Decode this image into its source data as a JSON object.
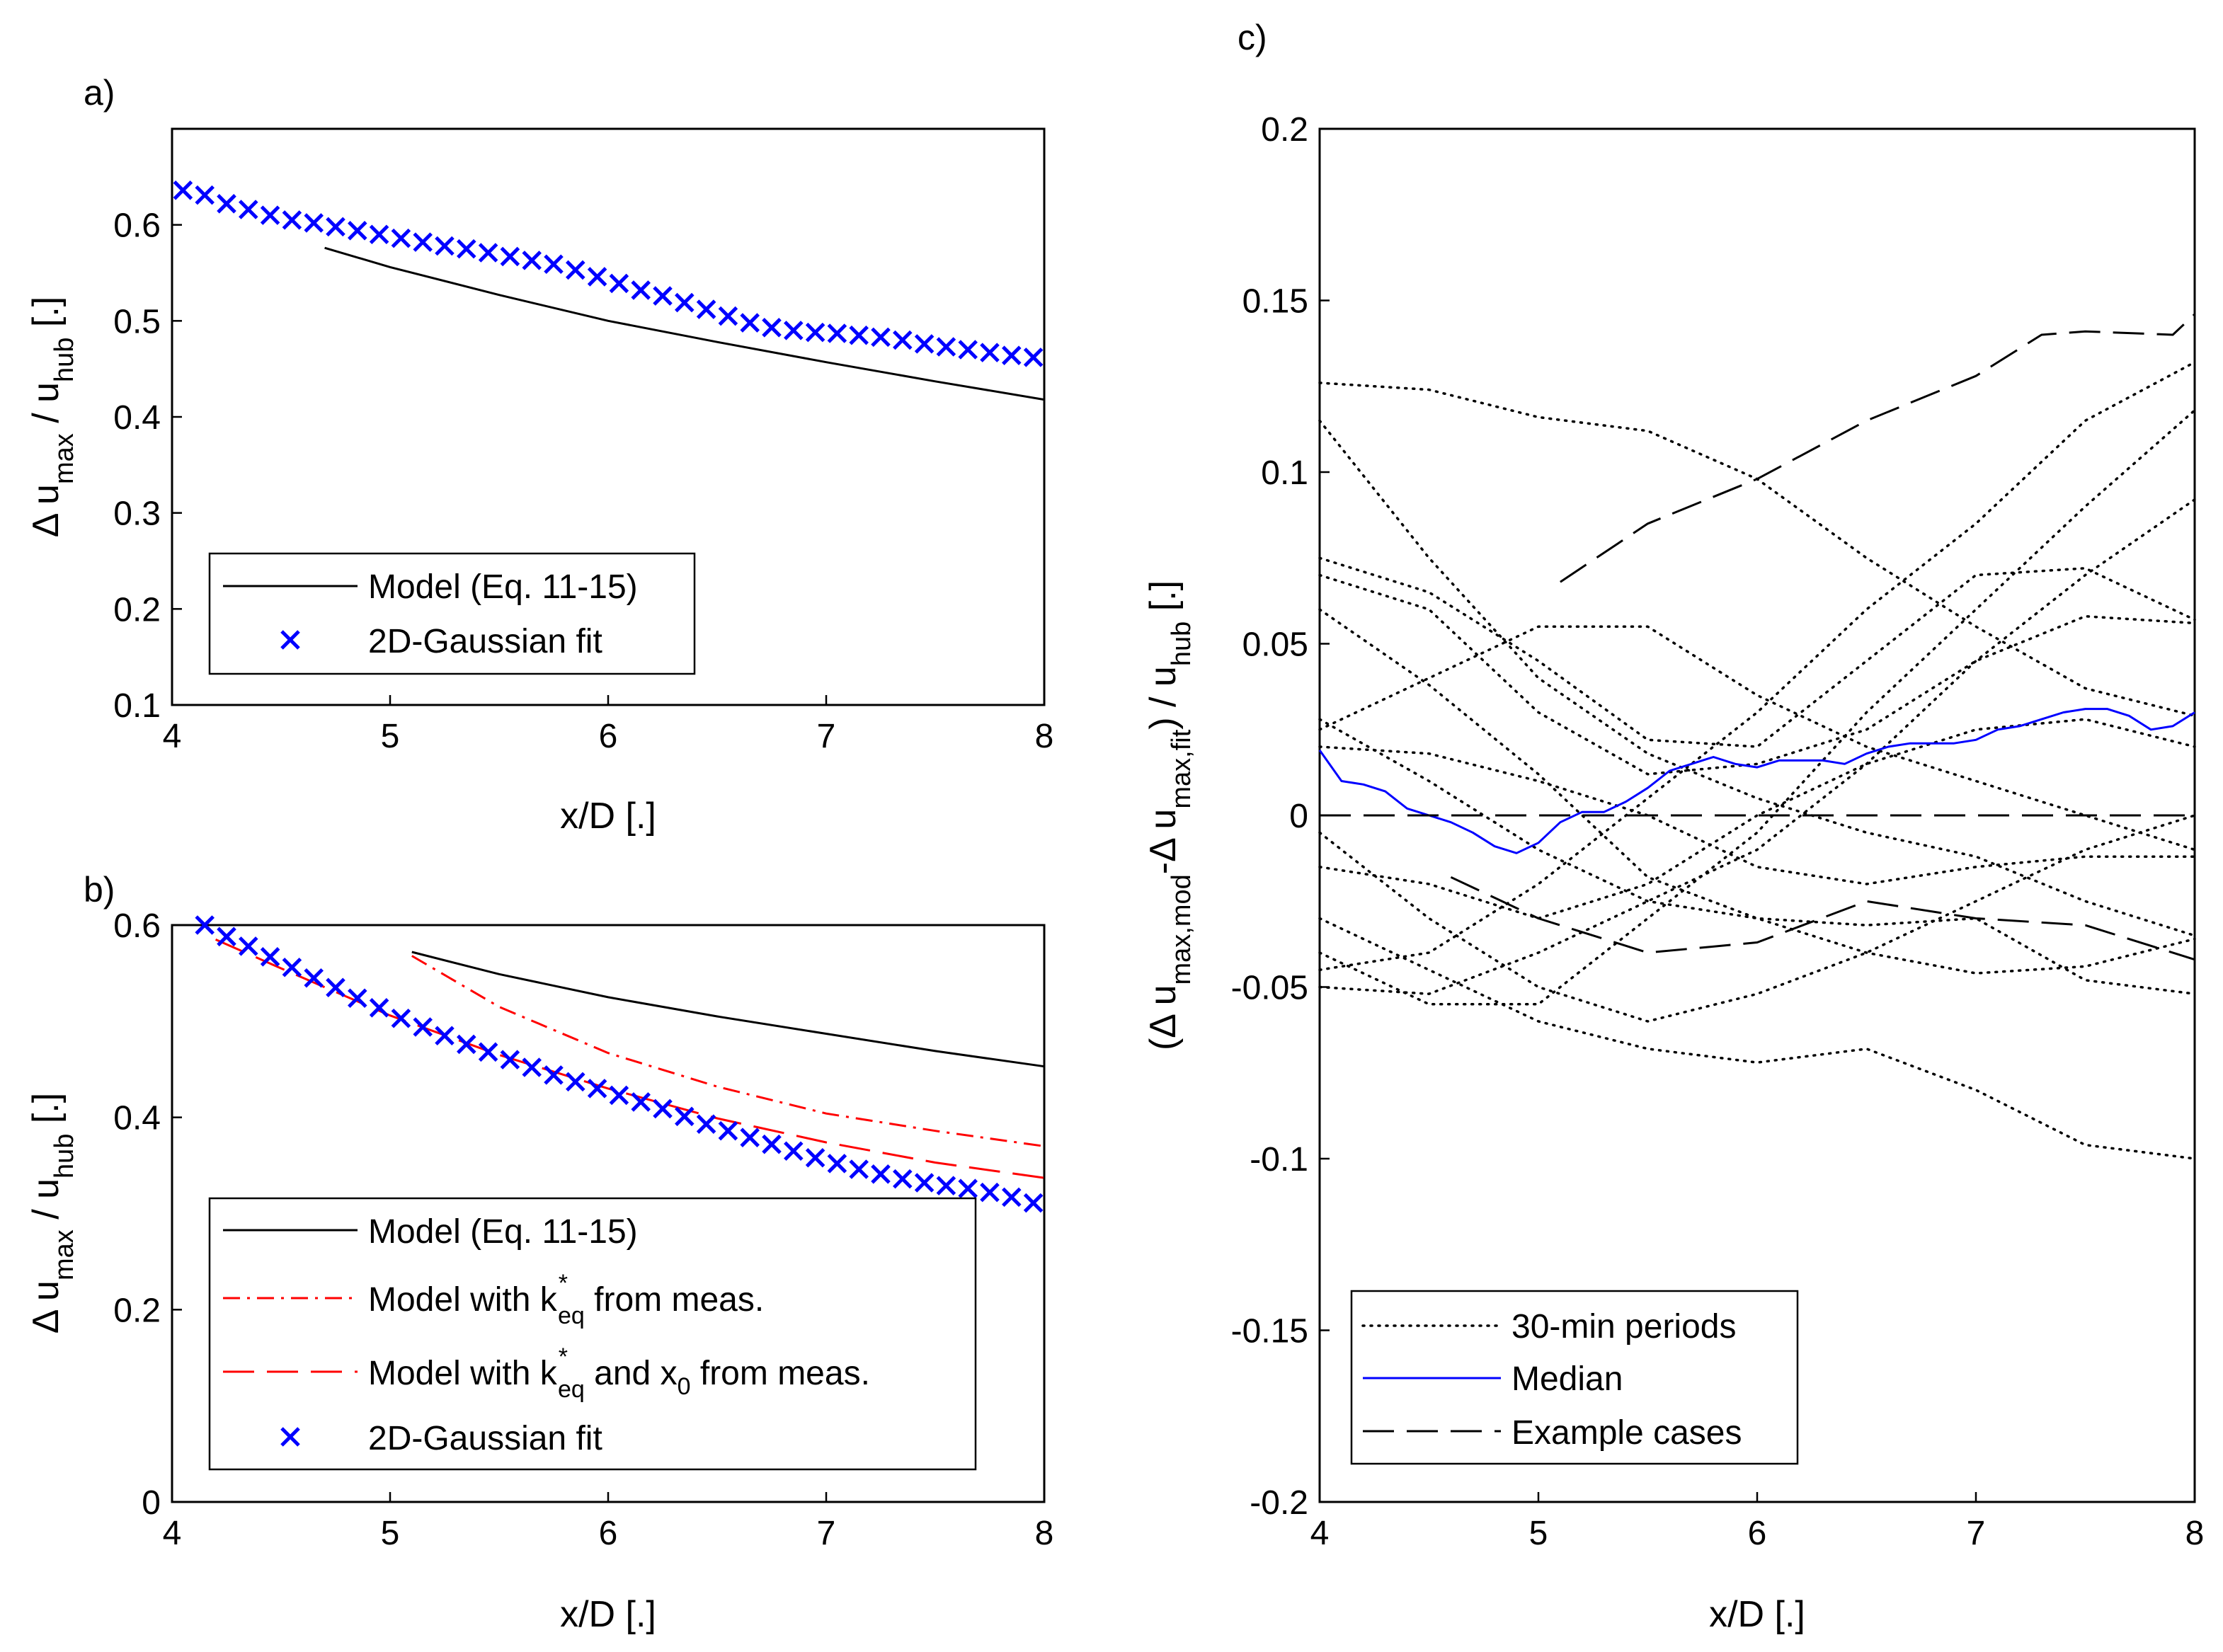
{
  "chart_data": [
    {
      "id": "a",
      "type": "line",
      "panel_label": "a)",
      "xlabel": "x/D [.]",
      "ylabel": "Δ u_max / u_hub [.]",
      "xlim": [
        4,
        8
      ],
      "ylim": [
        0.1,
        0.7
      ],
      "xticks": [
        "4",
        "5",
        "6",
        "7",
        "8"
      ],
      "yticks": [
        "0.1",
        "0.2",
        "0.3",
        "0.4",
        "0.5",
        "0.6"
      ],
      "legend_position": "bottom-left",
      "series": [
        {
          "name": "Model (Eq. 11-15)",
          "style": "solid",
          "color": "#000000",
          "x": [
            4.7,
            5.0,
            5.5,
            6.0,
            6.5,
            7.0,
            7.5,
            8.0
          ],
          "y": [
            0.576,
            0.556,
            0.527,
            0.5,
            0.478,
            0.457,
            0.437,
            0.418
          ]
        },
        {
          "name": "2D-Gaussian fit",
          "style": "x-marker",
          "color": "#0000ff",
          "x": [
            4.05,
            4.15,
            4.25,
            4.35,
            4.45,
            4.55,
            4.65,
            4.75,
            4.85,
            4.95,
            5.05,
            5.15,
            5.25,
            5.35,
            5.45,
            5.55,
            5.65,
            5.75,
            5.85,
            5.95,
            6.05,
            6.15,
            6.25,
            6.35,
            6.45,
            6.55,
            6.65,
            6.75,
            6.85,
            6.95,
            7.05,
            7.15,
            7.25,
            7.35,
            7.45,
            7.55,
            7.65,
            7.75,
            7.85,
            7.95
          ],
          "y": [
            0.636,
            0.631,
            0.622,
            0.616,
            0.61,
            0.605,
            0.602,
            0.598,
            0.594,
            0.59,
            0.586,
            0.582,
            0.578,
            0.575,
            0.571,
            0.567,
            0.563,
            0.559,
            0.553,
            0.546,
            0.539,
            0.532,
            0.526,
            0.519,
            0.512,
            0.505,
            0.498,
            0.493,
            0.49,
            0.488,
            0.487,
            0.485,
            0.483,
            0.48,
            0.476,
            0.473,
            0.47,
            0.467,
            0.464,
            0.462
          ]
        }
      ]
    },
    {
      "id": "b",
      "type": "line",
      "panel_label": "b)",
      "xlabel": "x/D [.]",
      "ylabel": "Δ u_max / u_hub [.]",
      "xlim": [
        4,
        8
      ],
      "ylim": [
        0,
        0.6
      ],
      "xticks": [
        "4",
        "5",
        "6",
        "7",
        "8"
      ],
      "yticks": [
        "0",
        "0.2",
        "0.4",
        "0.6"
      ],
      "legend_position": "bottom-left",
      "series": [
        {
          "name": "Model (Eq. 11-15)",
          "style": "solid",
          "color": "#000000",
          "x": [
            5.1,
            5.5,
            6.0,
            6.5,
            7.0,
            7.5,
            8.0
          ],
          "y": [
            0.572,
            0.549,
            0.525,
            0.505,
            0.487,
            0.469,
            0.453
          ]
        },
        {
          "name": "Model with k*_eq from meas.",
          "style": "dashdot",
          "color": "#ff0000",
          "x": [
            5.1,
            5.5,
            6.0,
            6.5,
            7.0,
            7.5,
            8.0
          ],
          "y": [
            0.568,
            0.515,
            0.467,
            0.432,
            0.404,
            0.386,
            0.37
          ]
        },
        {
          "name": "Model with k*_eq and x_0 from meas.",
          "style": "dashed",
          "color": "#ff0000",
          "x": [
            4.2,
            4.5,
            5.0,
            5.5,
            6.0,
            6.5,
            7.0,
            7.5,
            8.0
          ],
          "y": [
            0.585,
            0.555,
            0.506,
            0.465,
            0.43,
            0.399,
            0.374,
            0.353,
            0.337
          ]
        },
        {
          "name": "2D-Gaussian fit",
          "style": "x-marker",
          "color": "#0000ff",
          "x": [
            4.15,
            4.25,
            4.35,
            4.45,
            4.55,
            4.65,
            4.75,
            4.85,
            4.95,
            5.05,
            5.15,
            5.25,
            5.35,
            5.45,
            5.55,
            5.65,
            5.75,
            5.85,
            5.95,
            6.05,
            6.15,
            6.25,
            6.35,
            6.45,
            6.55,
            6.65,
            6.75,
            6.85,
            6.95,
            7.05,
            7.15,
            7.25,
            7.35,
            7.45,
            7.55,
            7.65,
            7.75,
            7.85,
            7.95
          ],
          "y": [
            0.6,
            0.588,
            0.578,
            0.567,
            0.556,
            0.545,
            0.535,
            0.524,
            0.514,
            0.503,
            0.494,
            0.485,
            0.476,
            0.468,
            0.46,
            0.452,
            0.444,
            0.437,
            0.43,
            0.423,
            0.416,
            0.409,
            0.401,
            0.393,
            0.386,
            0.379,
            0.372,
            0.365,
            0.358,
            0.352,
            0.346,
            0.341,
            0.336,
            0.332,
            0.329,
            0.326,
            0.322,
            0.317,
            0.311
          ]
        }
      ]
    },
    {
      "id": "c",
      "type": "line",
      "panel_label": "c)",
      "xlabel": "x/D [.]",
      "ylabel": "(Δ u_max,mod - Δ u_max,fit) / u_hub [.]",
      "xlim": [
        4,
        8
      ],
      "ylim": [
        -0.2,
        0.2
      ],
      "xticks": [
        "4",
        "5",
        "6",
        "7",
        "8"
      ],
      "yticks": [
        "-0.2",
        "-0.15",
        "-0.1",
        "-0.05",
        "0",
        "0.05",
        "0.1",
        "0.15",
        "0.2"
      ],
      "legend_position": "bottom-left",
      "legend": [
        "30-min periods",
        "Median",
        "Example cases"
      ],
      "series": [
        {
          "name": "30-min periods",
          "style": "dotted",
          "color": "#000000",
          "x": [
            4,
            4.5,
            5,
            5.5,
            6,
            6.5,
            7,
            7.5,
            8
          ],
          "y": [
            0.126,
            0.124,
            0.116,
            0.112,
            0.098,
            0.075,
            0.055,
            0.037,
            0.029
          ]
        },
        {
          "name": "30-min periods",
          "style": "dotted",
          "color": "#000000",
          "x": [
            4,
            4.5,
            5,
            5.5,
            6,
            6.5,
            7,
            7.5,
            8
          ],
          "y": [
            0.115,
            0.075,
            0.04,
            0.018,
            0.005,
            -0.005,
            -0.012,
            -0.025,
            -0.035
          ]
        },
        {
          "name": "30-min periods",
          "style": "dotted",
          "color": "#000000",
          "x": [
            4,
            4.5,
            5,
            5.5,
            6,
            6.5,
            7,
            7.5,
            8
          ],
          "y": [
            0.075,
            0.065,
            0.045,
            0.022,
            0.02,
            0.045,
            0.07,
            0.072,
            0.057
          ]
        },
        {
          "name": "30-min periods",
          "style": "dotted",
          "color": "#000000",
          "x": [
            4,
            4.5,
            5,
            5.5,
            6,
            6.5,
            7,
            7.5,
            8
          ],
          "y": [
            0.07,
            0.06,
            0.03,
            0.012,
            0.015,
            0.025,
            0.045,
            0.058,
            0.056
          ]
        },
        {
          "name": "30-min periods",
          "style": "dotted",
          "color": "#000000",
          "x": [
            4,
            4.5,
            5,
            5.5,
            6,
            6.5,
            7,
            7.5,
            8
          ],
          "y": [
            0.06,
            0.038,
            0.012,
            -0.018,
            -0.03,
            -0.032,
            -0.03,
            -0.048,
            -0.052
          ]
        },
        {
          "name": "30-min periods",
          "style": "dotted",
          "color": "#000000",
          "x": [
            4,
            4.5,
            5,
            5.5,
            6,
            6.5,
            7,
            7.5,
            8
          ],
          "y": [
            0.028,
            0.01,
            -0.01,
            -0.025,
            -0.03,
            -0.04,
            -0.046,
            -0.044,
            -0.036
          ]
        },
        {
          "name": "30-min periods",
          "style": "dotted",
          "color": "#000000",
          "x": [
            4,
            4.5,
            5,
            5.5,
            6,
            6.5,
            7,
            7.5,
            8
          ],
          "y": [
            0.025,
            0.04,
            0.055,
            0.055,
            0.035,
            0.02,
            0.01,
            0.0,
            -0.01
          ]
        },
        {
          "name": "30-min periods",
          "style": "dotted",
          "color": "#000000",
          "x": [
            4,
            4.5,
            5,
            5.5,
            6,
            6.5,
            7,
            7.5,
            8
          ],
          "y": [
            0.02,
            0.018,
            0.01,
            0.0,
            -0.015,
            -0.02,
            -0.015,
            -0.012,
            -0.012
          ]
        },
        {
          "name": "30-min periods",
          "style": "dotted",
          "color": "#000000",
          "x": [
            4,
            4.5,
            5,
            5.5,
            6,
            6.5,
            7,
            7.5,
            8
          ],
          "y": [
            -0.005,
            -0.03,
            -0.05,
            -0.06,
            -0.052,
            -0.04,
            -0.025,
            -0.01,
            0.0
          ]
        },
        {
          "name": "30-min periods",
          "style": "dotted",
          "color": "#000000",
          "x": [
            4,
            4.5,
            5,
            5.5,
            6,
            6.5,
            7,
            7.5,
            8
          ],
          "y": [
            -0.015,
            -0.02,
            -0.03,
            -0.02,
            0.0,
            0.015,
            0.025,
            0.028,
            0.02
          ]
        },
        {
          "name": "30-min periods",
          "style": "dotted",
          "color": "#000000",
          "x": [
            4,
            4.5,
            5,
            5.5,
            6,
            6.5,
            7,
            7.5,
            8
          ],
          "y": [
            -0.03,
            -0.045,
            -0.06,
            -0.068,
            -0.072,
            -0.068,
            -0.08,
            -0.096,
            -0.1
          ]
        },
        {
          "name": "30-min periods",
          "style": "dotted",
          "color": "#000000",
          "x": [
            4,
            4.5,
            5,
            5.5,
            6,
            6.5,
            7,
            7.5,
            8
          ],
          "y": [
            -0.04,
            -0.055,
            -0.055,
            -0.03,
            -0.005,
            0.03,
            0.06,
            0.09,
            0.118
          ]
        },
        {
          "name": "30-min periods",
          "style": "dotted",
          "color": "#000000",
          "x": [
            4,
            4.5,
            5,
            5.5,
            6,
            6.5,
            7,
            7.5,
            8
          ],
          "y": [
            -0.045,
            -0.04,
            -0.02,
            0.005,
            0.03,
            0.06,
            0.085,
            0.115,
            0.132
          ]
        },
        {
          "name": "30-min periods",
          "style": "dotted",
          "color": "#000000",
          "x": [
            4,
            4.5,
            5,
            5.5,
            6,
            6.5,
            7,
            7.5,
            8
          ],
          "y": [
            -0.05,
            -0.052,
            -0.04,
            -0.025,
            -0.01,
            0.015,
            0.045,
            0.07,
            0.092
          ]
        },
        {
          "name": "Median",
          "style": "solid",
          "color": "#0000ff",
          "x": [
            4.0,
            4.1,
            4.2,
            4.3,
            4.4,
            4.5,
            4.6,
            4.7,
            4.8,
            4.9,
            5.0,
            5.1,
            5.2,
            5.3,
            5.4,
            5.5,
            5.6,
            5.7,
            5.8,
            5.9,
            6.0,
            6.1,
            6.2,
            6.3,
            6.4,
            6.5,
            6.6,
            6.7,
            6.8,
            6.9,
            7.0,
            7.1,
            7.2,
            7.3,
            7.4,
            7.5,
            7.6,
            7.7,
            7.8,
            7.9,
            8.0
          ],
          "y": [
            0.019,
            0.01,
            0.009,
            0.007,
            0.002,
            0.0,
            -0.002,
            -0.005,
            -0.009,
            -0.011,
            -0.008,
            -0.002,
            0.001,
            0.001,
            0.004,
            0.008,
            0.013,
            0.015,
            0.017,
            0.015,
            0.014,
            0.016,
            0.016,
            0.016,
            0.015,
            0.018,
            0.02,
            0.021,
            0.021,
            0.021,
            0.022,
            0.025,
            0.026,
            0.028,
            0.03,
            0.031,
            0.031,
            0.029,
            0.025,
            0.026,
            0.03
          ]
        },
        {
          "name": "Example cases",
          "style": "dashed",
          "color": "#000000",
          "x": [
            5.1,
            5.5,
            6.0,
            6.5,
            7.0,
            7.3,
            7.5,
            7.9,
            8.0
          ],
          "y": [
            0.068,
            0.085,
            0.098,
            0.115,
            0.128,
            0.14,
            0.141,
            0.14,
            0.146
          ]
        },
        {
          "name": "Example cases",
          "style": "dashed",
          "color": "#000000",
          "x": [
            4.6,
            5.0,
            5.5,
            6.0,
            6.5,
            7.0,
            7.5,
            8.0
          ],
          "y": [
            -0.018,
            -0.03,
            -0.04,
            -0.037,
            -0.025,
            -0.03,
            -0.032,
            -0.042
          ]
        },
        {
          "name": "Example cases",
          "style": "dashed",
          "color": "#000000",
          "x": [
            4,
            8
          ],
          "y": [
            0,
            0
          ]
        }
      ]
    }
  ]
}
